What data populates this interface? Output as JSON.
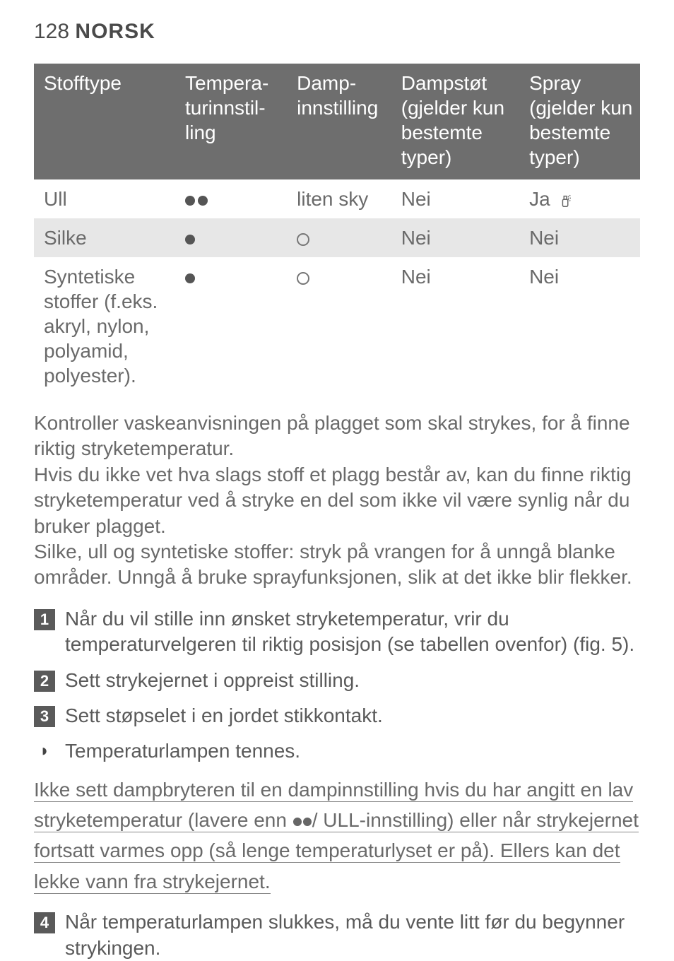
{
  "header": {
    "page_number": "128",
    "language": "NORSK"
  },
  "table": {
    "columns": [
      "Stofftype",
      "Tempera-turinnstil-ling",
      "Damp-innstilling",
      "Dampstøt (gjelder kun bestemte typer)",
      "Spray (gjelder kun bestemte typer)"
    ],
    "rows": [
      {
        "fabric": "Ull",
        "temp_dots": 2,
        "steam_text": "liten sky",
        "steam_symbol": null,
        "boost": "Nei",
        "spray": "Ja",
        "spray_icon": true,
        "alt": false
      },
      {
        "fabric": "Silke",
        "temp_dots": 1,
        "steam_text": null,
        "steam_symbol": "circle",
        "boost": "Nei",
        "spray": "Nei",
        "spray_icon": false,
        "alt": true
      },
      {
        "fabric": "Syntetiske stoffer (f.eks. akryl, nylon, polyamid, polyester).",
        "temp_dots": 1,
        "steam_text": null,
        "steam_symbol": "circle",
        "boost": "Nei",
        "spray": "Nei",
        "spray_icon": false,
        "alt": false
      }
    ],
    "colors": {
      "header_bg": "#6e6e6e",
      "header_text": "#ffffff",
      "alt_row_bg": "#e7e7e7",
      "text": "#6a6a6a",
      "dot": "#555555",
      "circle_border": "#777777"
    },
    "font_size_pt": 21
  },
  "paragraphs": [
    "Kontroller vaskeanvisningen på plagget som skal strykes, for å finne riktig stryketemperatur.",
    "Hvis du ikke vet hva slags stoff et plagg består av, kan du finne riktig stryketemperatur ved å stryke en del som ikke vil være synlig når du bruker plagget.",
    "Silke, ull og syntetiske stoffer: stryk på vrangen for å unngå blanke områder. Unngå å bruke sprayfunksjonen, slik at det ikke blir flekker."
  ],
  "steps": [
    {
      "n": "1",
      "text": "Når du vil stille inn ønsket stryketemperatur, vrir du temperaturvelgeren til riktig posisjon (se tabellen ovenfor) (fig. 5)."
    },
    {
      "n": "2",
      "text": "Sett strykejernet i oppreist stilling."
    },
    {
      "n": "3",
      "text": "Sett støpselet i en jordet stikkontakt."
    }
  ],
  "substep": {
    "marker": "◗",
    "text": "Temperaturlampen tennes."
  },
  "warning": {
    "pre": "Ikke sett dampbryteren til en dampinnstilling hvis du har angitt en lav stryketemperatur (lavere enn ",
    "post": "/ ULL-innstilling) eller når strykejernet fortsatt varmes opp (så lenge temperaturlyset er på). Ellers kan det lekke vann fra strykejernet.",
    "dots": 2
  },
  "step4": {
    "n": "4",
    "text": "Når temperaturlampen slukkes, må du vente litt før du begynner strykingen."
  },
  "style": {
    "page_bg": "#ffffff",
    "body_text_color": "#6a6a6a",
    "heading_color": "#4a4a4a",
    "step_badge_bg": "#5a5a5a",
    "step_badge_text": "#ffffff",
    "underline_color": "#888888",
    "font_family": "Gill Sans",
    "body_font_size_pt": 21,
    "header_font_size_pt": 22
  }
}
